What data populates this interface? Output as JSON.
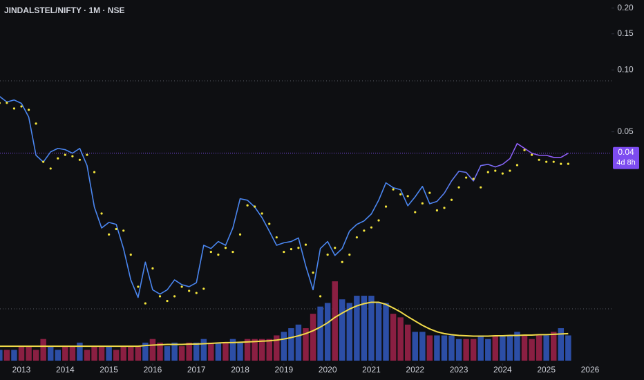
{
  "chart_data": {
    "type": "line",
    "title": "JINDALSTEL/NIFTY · 1M · NSE",
    "x": [
      2012.5,
      2012.667,
      2012.833,
      2013,
      2013.167,
      2013.333,
      2013.5,
      2013.667,
      2013.833,
      2014,
      2014.167,
      2014.333,
      2014.5,
      2014.667,
      2014.833,
      2015,
      2015.167,
      2015.333,
      2015.5,
      2015.667,
      2015.833,
      2016,
      2016.167,
      2016.333,
      2016.5,
      2016.667,
      2016.833,
      2017,
      2017.167,
      2017.333,
      2017.5,
      2017.667,
      2017.833,
      2018,
      2018.167,
      2018.333,
      2018.5,
      2018.667,
      2018.833,
      2019,
      2019.167,
      2019.333,
      2019.5,
      2019.667,
      2019.833,
      2020,
      2020.167,
      2020.333,
      2020.5,
      2020.667,
      2020.833,
      2021,
      2021.167,
      2021.333,
      2021.5,
      2021.667,
      2021.833,
      2022,
      2022.167,
      2022.333,
      2022.5,
      2022.667,
      2022.833,
      2023,
      2023.167,
      2023.333,
      2023.5,
      2023.667,
      2023.833,
      2024,
      2024.167,
      2024.333,
      2024.5,
      2024.667,
      2024.833,
      2025,
      2025.167,
      2025.333,
      2025.5
    ],
    "xlim": [
      2012.51,
      2026.49
    ],
    "xticks": [
      2013,
      2014,
      2015,
      2016,
      2017,
      2018,
      2019,
      2020,
      2021,
      2022,
      2023,
      2024,
      2025,
      2026
    ],
    "ylim": [
      0.00384,
      0.219
    ],
    "yticks": [
      {
        "value": 0.2,
        "label": "0.20"
      },
      0.15,
      {
        "value": 0.1,
        "label": "0.10"
      },
      0.05
    ],
    "log_y": true,
    "y2lim": [
      0,
      100
    ],
    "series": [
      {
        "style": "line",
        "color": "#4a86f0",
        "color_end": "#8f5cf5",
        "values": [
          0.0743,
          0.0698,
          0.0714,
          0.0687,
          0.0589,
          0.0384,
          0.0356,
          0.0399,
          0.0415,
          0.0409,
          0.0393,
          0.0415,
          0.0342,
          0.0215,
          0.017,
          0.0181,
          0.0177,
          0.0135,
          0.0095,
          0.0078,
          0.0116,
          0.0085,
          0.0081,
          0.0085,
          0.0095,
          0.009,
          0.0088,
          0.0092,
          0.014,
          0.0135,
          0.0146,
          0.014,
          0.017,
          0.0236,
          0.0232,
          0.0215,
          0.0191,
          0.0164,
          0.014,
          0.0144,
          0.0146,
          0.0152,
          0.0111,
          0.0085,
          0.0135,
          0.0146,
          0.0125,
          0.0135,
          0.0164,
          0.0177,
          0.0184,
          0.0199,
          0.0232,
          0.0282,
          0.0267,
          0.0261,
          0.0218,
          0.0241,
          0.0271,
          0.0223,
          0.0229,
          0.0251,
          0.0288,
          0.0321,
          0.0317,
          0.0288,
          0.0342,
          0.0347,
          0.0337,
          0.0347,
          0.037,
          0.0438,
          0.0415,
          0.0393,
          0.0384,
          0.0384,
          0.0375,
          0.0375,
          0.0393
        ]
      },
      {
        "style": "dots",
        "color": "#f5e63c",
        "values": [
          0.069,
          0.0691,
          0.0649,
          0.0664,
          0.0639,
          0.0548,
          0.0357,
          0.0331,
          0.0371,
          0.0386,
          0.038,
          0.0365,
          0.0386,
          0.0318,
          0.02,
          0.0158,
          0.0168,
          0.0165,
          0.0126,
          0.0088,
          0.0073,
          0.0108,
          0.0079,
          0.0075,
          0.0079,
          0.0088,
          0.0084,
          0.0082,
          0.0086,
          0.013,
          0.0126,
          0.0136,
          0.013,
          0.0158,
          0.0219,
          0.0216,
          0.02,
          0.0178,
          0.0153,
          0.013,
          0.0134,
          0.0136,
          0.0141,
          0.0103,
          0.0079,
          0.0126,
          0.0136,
          0.0116,
          0.0126,
          0.0153,
          0.0165,
          0.0171,
          0.0185,
          0.0216,
          0.0262,
          0.0248,
          0.0243,
          0.0203,
          0.0224,
          0.0252,
          0.0207,
          0.0213,
          0.0233,
          0.0268,
          0.0299,
          0.0295,
          0.0268,
          0.0318,
          0.0323,
          0.0313,
          0.0323,
          0.0344,
          0.0407,
          0.0386,
          0.0365,
          0.0357,
          0.0357,
          0.0349,
          0.0349
        ]
      },
      {
        "style": "bars",
        "axis": "y2",
        "color": "#2c4ea6",
        "down_color": "#8a1f42",
        "values": [
          3,
          3,
          3,
          4,
          4,
          3,
          6,
          4,
          3,
          4,
          4,
          5,
          3,
          4,
          4,
          4,
          3,
          4,
          4,
          4,
          5,
          6,
          5,
          4,
          5,
          4,
          5,
          5,
          6,
          5,
          5,
          5,
          6,
          5,
          6,
          6,
          6,
          6,
          7,
          8,
          9,
          10,
          9,
          13,
          15,
          16,
          22,
          17,
          16,
          18,
          18,
          18,
          16,
          16,
          13,
          12,
          10,
          8,
          8,
          7,
          7,
          7,
          7,
          6,
          6,
          6,
          7,
          6,
          7,
          7,
          7,
          8,
          7,
          6,
          7,
          7,
          8,
          9,
          7
        ]
      },
      {
        "style": "line",
        "axis": "y2",
        "color": "#f2dc4a",
        "values": [
          4,
          4,
          4,
          4,
          4,
          4,
          4,
          4,
          4,
          4,
          4,
          4,
          4,
          4,
          4,
          4,
          4,
          4,
          4,
          4,
          4.2,
          4.3,
          4.4,
          4.5,
          4.5,
          4.5,
          4.6,
          4.6,
          4.7,
          4.8,
          4.9,
          5,
          5,
          5.1,
          5.2,
          5.3,
          5.4,
          5.5,
          5.7,
          6,
          6.4,
          6.9,
          7.5,
          8.3,
          9.3,
          10.5,
          12,
          13.2,
          14.3,
          15.2,
          15.8,
          16.2,
          16.2,
          15.6,
          14.6,
          13.5,
          12.2,
          11,
          9.8,
          8.8,
          8,
          7.5,
          7.2,
          7,
          6.9,
          6.8,
          6.8,
          6.8,
          6.9,
          6.9,
          7,
          7,
          7.1,
          7.1,
          7.2,
          7.2,
          7.3,
          7.4,
          7.5
        ]
      }
    ],
    "last_label": "0.04",
    "countdown": "4d 8h",
    "tag_color": "#7d4cf0"
  }
}
